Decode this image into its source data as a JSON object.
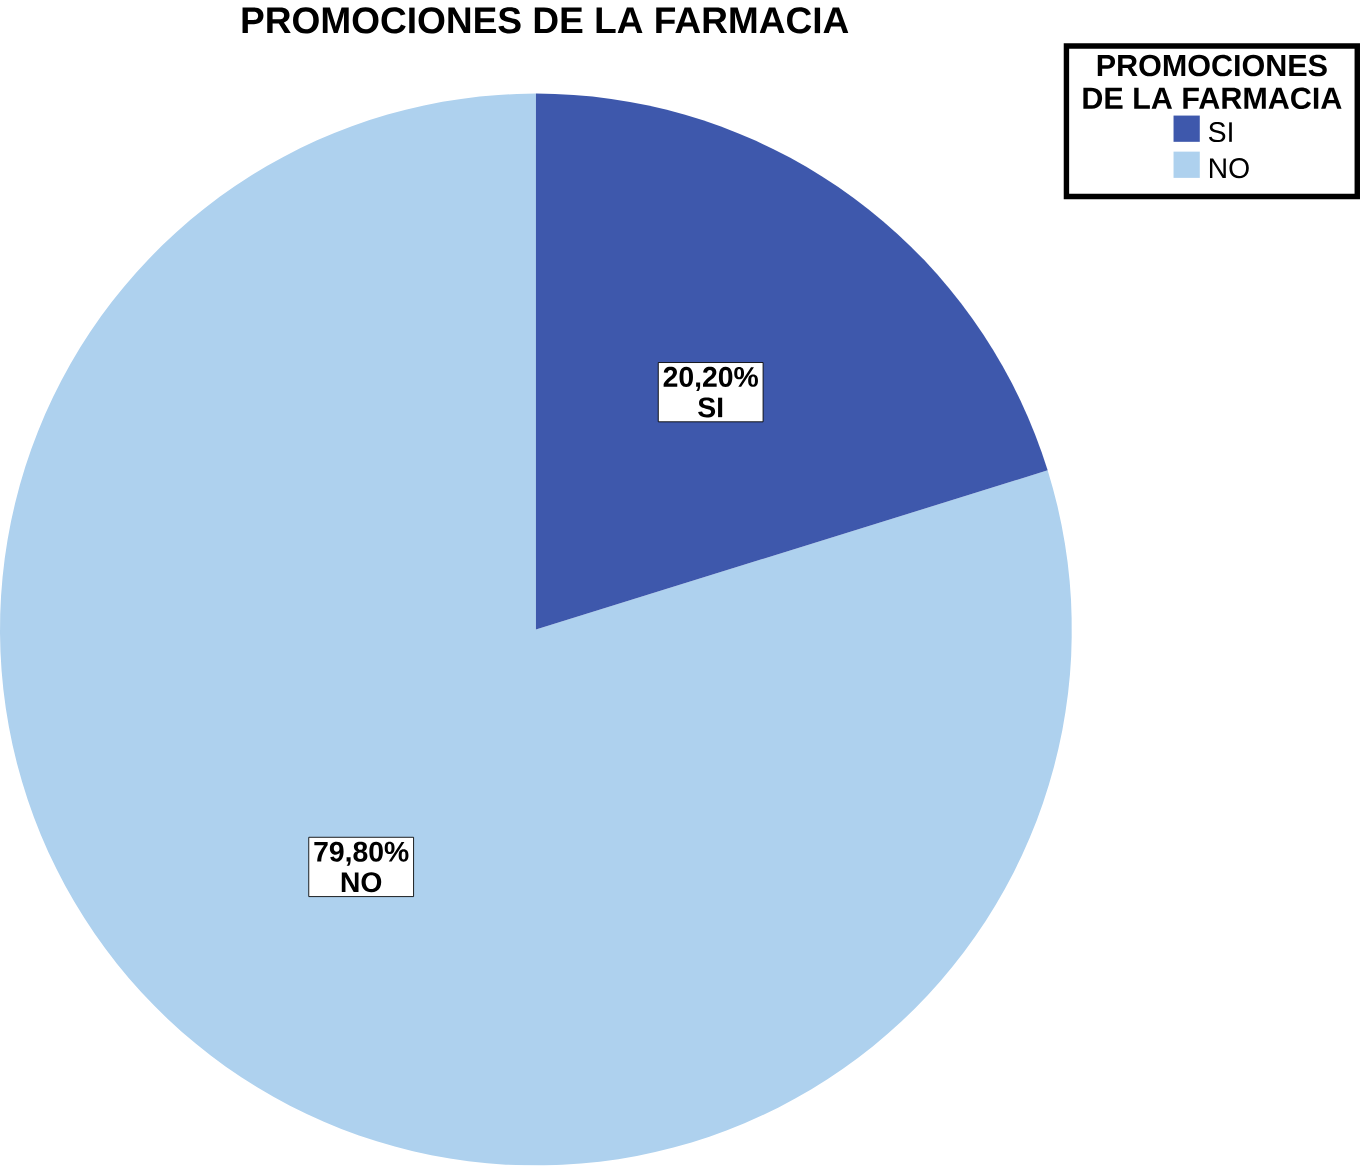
{
  "chart_data": {
    "type": "pie",
    "title": "PROMOCIONES DE LA FARMACIA",
    "legend_title": "PROMOCIONES DE LA FARMACIA",
    "categories": [
      "SI",
      "NO"
    ],
    "values": [
      20.2,
      79.8
    ],
    "value_labels": [
      "20,20%",
      "79,80%"
    ],
    "colors": [
      "#3e58ac",
      "#aed1ee"
    ],
    "legend": "top right"
  }
}
